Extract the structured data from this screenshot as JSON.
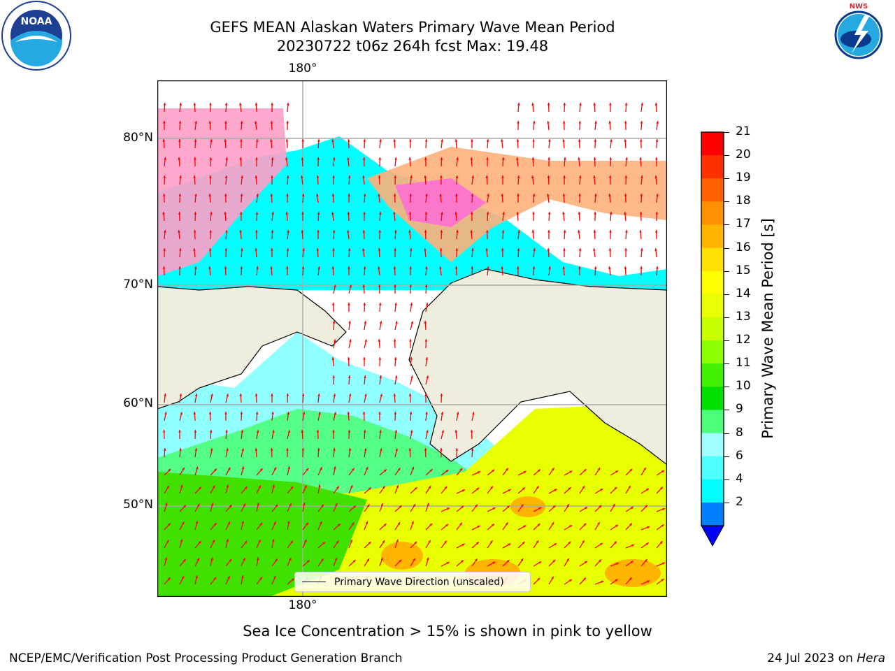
{
  "title": {
    "line1": "GEFS MEAN Alaskan Waters Primary Wave Mean Period",
    "line2": "20230722 t06z 264h fcst   Max: 19.48"
  },
  "logos": {
    "left": {
      "name": "noaa-logo",
      "text": "NOAA"
    },
    "right": {
      "name": "national-weather-service-logo",
      "text": "NATIONAL WEATHER SERVICE"
    }
  },
  "map": {
    "lat_labels": [
      "80°N",
      "70°N",
      "60°N",
      "50°N"
    ],
    "lon_label_top": "180°",
    "lon_label_bottom": "180°",
    "land_color": "#efedde",
    "arrow_color": "#ff0000"
  },
  "legend": {
    "label": "Primary Wave Direction (unscaled)"
  },
  "colorbar": {
    "label": "Primary Wave Mean Period [s]",
    "ticks": [
      "21",
      "20",
      "19",
      "18",
      "17",
      "16",
      "15",
      "14",
      "13",
      "12",
      "11",
      "10",
      "9",
      "8",
      "6",
      "4",
      "2"
    ],
    "colors": [
      "#ff0000",
      "#ff3000",
      "#ff6000",
      "#ff9000",
      "#ffb400",
      "#ffe000",
      "#ffff00",
      "#e8ff00",
      "#c8ff00",
      "#8cff00",
      "#40f000",
      "#00e000",
      "#4cff7a",
      "#a0ffff",
      "#50ffff",
      "#00ffff",
      "#0080ff"
    ],
    "extend_color": "#0000ff"
  },
  "note": "Sea Ice Concentration > 15% is shown in pink to yellow",
  "footer": {
    "left": "NCEP/EMC/Verification Post Processing Product Generation Branch",
    "right_date": "24 Jul 2023 on ",
    "right_machine": "Hera"
  }
}
